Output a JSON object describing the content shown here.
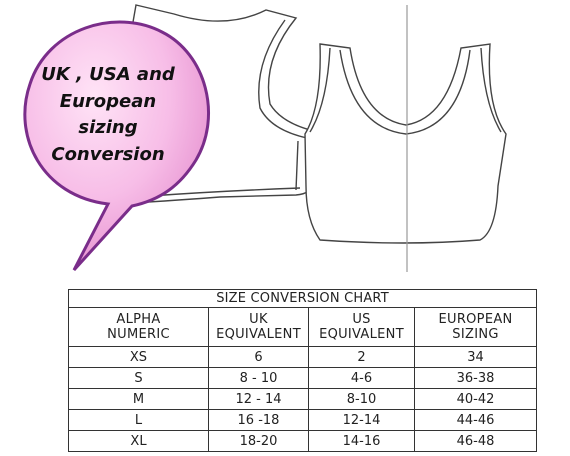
{
  "bubble": {
    "lines": [
      "UK , USA and",
      "European",
      "sizing",
      "Conversion"
    ],
    "fill_color": "#f2a9dd",
    "highlight_color": "#ffe3f6",
    "outline_color": "#7a2d8a"
  },
  "size_chart": {
    "title": "SIZE CONVERSION CHART",
    "headers": [
      [
        "ALPHA",
        "NUMERIC"
      ],
      [
        "UK",
        "EQUIVALENT"
      ],
      [
        "US",
        "EQUIVALENT"
      ],
      [
        "EUROPEAN",
        "SIZING"
      ]
    ],
    "rows": [
      [
        "XS",
        "6",
        "2",
        "34"
      ],
      [
        "S",
        "8 - 10",
        "4-6",
        "36-38"
      ],
      [
        "M",
        "12 - 14",
        "8-10",
        "40-42"
      ],
      [
        "L",
        "16 -18",
        "12-14",
        "44-46"
      ],
      [
        "XL",
        "18-20",
        "14-16",
        "46-48"
      ]
    ]
  }
}
